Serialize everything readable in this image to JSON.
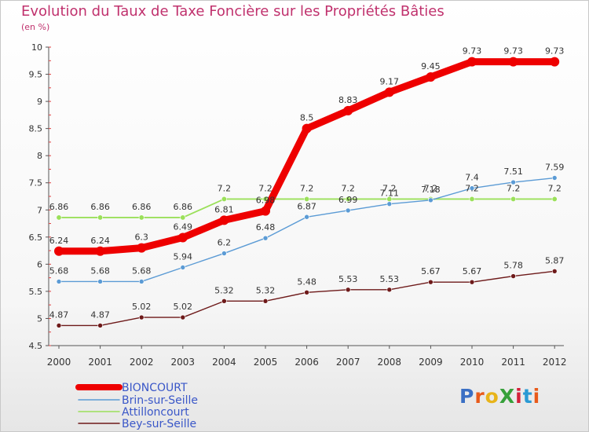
{
  "title": "Evolution du Taux de Taxe Foncière sur les Propriétés Bâties",
  "subtitle": "(en %)",
  "logo": {
    "text": "ProXiti",
    "colors": [
      "#3a6fc4",
      "#e85a1a",
      "#e8b41a",
      "#36a03a",
      "#d4203a",
      "#2a9ad4",
      "#e85a1a"
    ]
  },
  "chart_data": {
    "type": "line",
    "title": "Evolution du Taux de Taxe Foncière sur les Propriétés Bâties",
    "ylabel": "(en %)",
    "xlabel": "",
    "ylim": [
      4.5,
      10
    ],
    "yticks": [
      "4.5",
      "5",
      "5.5",
      "6",
      "6.5",
      "7",
      "7.5",
      "8",
      "8.5",
      "9",
      "9.5",
      "10"
    ],
    "x": [
      "2000",
      "2001",
      "2002",
      "2003",
      "2004",
      "2005",
      "2006",
      "2007",
      "2008",
      "2009",
      "2010",
      "2011",
      "2012"
    ],
    "grid": false,
    "legend_position": "bottom-left",
    "series": [
      {
        "name": "BIONCOURT",
        "color": "#ee0000",
        "values": [
          6.24,
          6.24,
          6.3,
          6.49,
          6.81,
          6.98,
          8.5,
          8.83,
          9.17,
          9.45,
          9.73,
          9.73,
          9.73
        ],
        "labels": [
          "6.24",
          "6.24",
          "6.3",
          "6.49",
          "6.81",
          "6.98",
          "8.5",
          "8.83",
          "9.17",
          "9.45",
          "9.73",
          "9.73",
          "9.73"
        ]
      },
      {
        "name": "Brin-sur-Seille",
        "color": "#5b9bd5",
        "values": [
          5.68,
          5.68,
          5.68,
          5.94,
          6.2,
          6.48,
          6.87,
          6.99,
          7.11,
          7.18,
          7.4,
          7.51,
          7.59
        ],
        "labels": [
          "5.68",
          "5.68",
          "5.68",
          "5.94",
          "6.2",
          "6.48",
          "6.87",
          "6.99",
          "7.11",
          "7.18",
          "7.4",
          "7.51",
          "7.59"
        ]
      },
      {
        "name": "Attilloncourt",
        "color": "#9be05a",
        "values": [
          6.86,
          6.86,
          6.86,
          6.86,
          7.2,
          7.2,
          7.2,
          7.2,
          7.2,
          7.2,
          7.2,
          7.2,
          7.2
        ],
        "labels": [
          "6.86",
          "6.86",
          "6.86",
          "6.86",
          "7.2",
          "7.2",
          "7.2",
          "7.2",
          "7.2",
          "7.2",
          "7.2",
          "7.2",
          "7.2"
        ]
      },
      {
        "name": "Bey-sur-Seille",
        "color": "#6e1a1a",
        "values": [
          4.87,
          4.87,
          5.02,
          5.02,
          5.32,
          5.32,
          5.48,
          5.53,
          5.53,
          5.67,
          5.67,
          5.78,
          5.87
        ],
        "labels": [
          "4.87",
          "4.87",
          "5.02",
          "5.02",
          "5.32",
          "5.32",
          "5.48",
          "5.53",
          "5.53",
          "5.67",
          "5.67",
          "5.78",
          "5.87"
        ]
      }
    ]
  }
}
